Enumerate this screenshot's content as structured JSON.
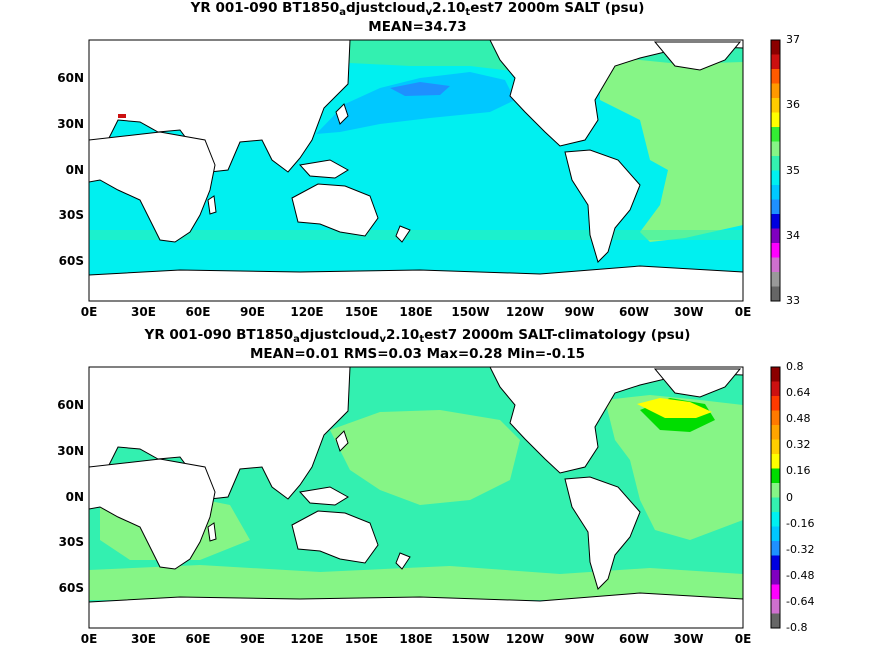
{
  "panels": [
    {
      "title_parts": [
        "YR 001-090 BT1850",
        "a",
        "djustcloud",
        "v",
        "2.10",
        "t",
        "est7 2000m SALT (psu)"
      ],
      "subtitle": "MEAN=34.73",
      "colorbar": {
        "labels": [
          "37",
          "36",
          "35",
          "34",
          "33"
        ],
        "colors": [
          "#8b0000",
          "#cc1010",
          "#ff5a00",
          "#ff9900",
          "#ffcc00",
          "#ffff00",
          "#33ee33",
          "#86f586",
          "#33f0b0",
          "#00f0f0",
          "#00c8ff",
          "#1e90ff",
          "#0000e0",
          "#8000c0",
          "#ff00ff",
          "#d070d0",
          "#999999",
          "#666666"
        ]
      }
    },
    {
      "title_parts": [
        "YR 001-090 BT1850",
        "a",
        "djustcloud",
        "v",
        "2.10",
        "t",
        "est7 2000m SALT-climatology (psu)"
      ],
      "subtitle": "MEAN=0.01   RMS=0.03   Max=0.28   Min=-0.15",
      "colorbar": {
        "labels": [
          "0.8",
          "0.64",
          "0.48",
          "0.32",
          "0.16",
          "0",
          "-0.16",
          "-0.32",
          "-0.48",
          "-0.64",
          "-0.8"
        ],
        "colors": [
          "#8b0000",
          "#cc1010",
          "#ff3a00",
          "#ff7a00",
          "#ffa500",
          "#ffd000",
          "#ffff00",
          "#00dd00",
          "#86f586",
          "#33f0b0",
          "#00f0f0",
          "#00c8ff",
          "#1e90ff",
          "#0000e0",
          "#8000c0",
          "#ff00ff",
          "#d070d0",
          "#666666"
        ]
      }
    }
  ],
  "x_ticks": [
    "0E",
    "30E",
    "60E",
    "90E",
    "120E",
    "150E",
    "180E",
    "150W",
    "120W",
    "90W",
    "60W",
    "30W",
    "0E"
  ],
  "y_ticks": [
    "60N",
    "30N",
    "0N",
    "30S",
    "60S"
  ],
  "map_colors": {
    "land": "#ffffff",
    "ocean_cyan": "#00f0f0",
    "north_pacific": "#00c8ff",
    "north_pacific_core": "#1e90ff",
    "atlantic": "#86f586",
    "arctic": "#33f0b0",
    "southern_ocean": "#33f0b0",
    "anomaly_base": "#33f0b0",
    "anomaly_pos": "#86f586",
    "anomaly_mid": "#00dd00",
    "anomaly_high": "#ffff00"
  }
}
